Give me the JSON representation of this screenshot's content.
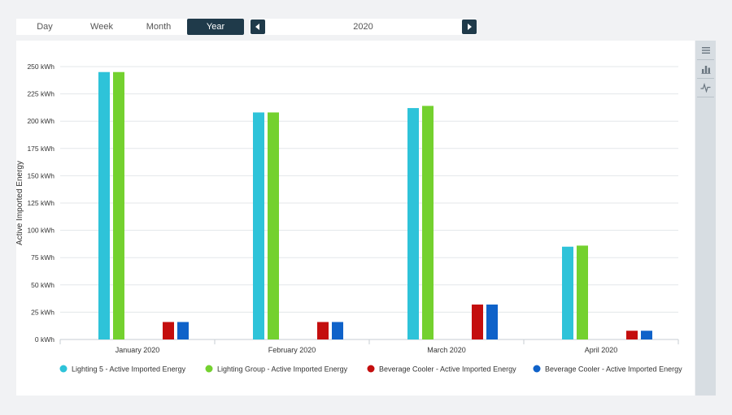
{
  "toolbar": {
    "tabs": [
      {
        "label": "Day",
        "active": false
      },
      {
        "label": "Week",
        "active": false
      },
      {
        "label": "Month",
        "active": false
      },
      {
        "label": "Year",
        "active": true
      }
    ],
    "year": "2020",
    "prev_icon": "caret-left-icon",
    "next_icon": "caret-right-icon"
  },
  "side_toolbar": {
    "icons": [
      "menu-icon",
      "bar-chart-icon",
      "line-chart-icon"
    ]
  },
  "chart_data": {
    "type": "bar",
    "title": "",
    "xlabel": "",
    "ylabel": "Active Imported Energy",
    "ylim": [
      0,
      250
    ],
    "y_ticks": [
      0,
      25,
      50,
      75,
      100,
      125,
      150,
      175,
      200,
      225,
      250
    ],
    "y_tick_labels": [
      "0 kWh",
      "25 kWh",
      "50 kWh",
      "75 kWh",
      "100 kWh",
      "125 kWh",
      "150 kWh",
      "175 kWh",
      "200 kWh",
      "225 kWh",
      "250 kWh"
    ],
    "categories": [
      "January 2020",
      "February 2020",
      "March 2020",
      "April 2020"
    ],
    "grid": true,
    "legend_position": "bottom",
    "series": [
      {
        "name": "Lighting 5 - Active Imported Energy",
        "color": "#2ec3d9",
        "values": [
          245,
          208,
          212,
          85
        ]
      },
      {
        "name": "Lighting Group - Active Imported Energy",
        "color": "#74d12f",
        "values": [
          245,
          208,
          214,
          86
        ]
      },
      {
        "name": "Beverage Cooler - Active Imported Energy",
        "color": "#c40e0e",
        "values": [
          16,
          16,
          32,
          8
        ]
      },
      {
        "name": "Beverage Cooler - Active Imported Energy",
        "color": "#0f62c9",
        "values": [
          16,
          16,
          32,
          8
        ]
      }
    ]
  }
}
